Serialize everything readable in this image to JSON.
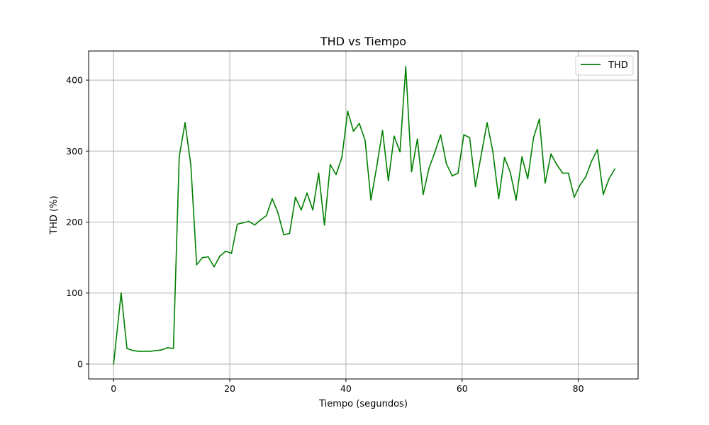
{
  "chart_data": {
    "type": "line",
    "title": "THD vs Tiempo",
    "xlabel": "Tiempo (segundos)",
    "ylabel": "THD (%)",
    "xlim": [
      -4.3,
      90.3
    ],
    "ylim": [
      -21,
      441
    ],
    "xticks": [
      0,
      20,
      40,
      60,
      80
    ],
    "yticks": [
      0,
      100,
      200,
      300,
      400
    ],
    "grid": true,
    "legend_position": "top-right",
    "series": [
      {
        "name": "THD",
        "color": "#008000",
        "x": [
          0,
          1.3,
          2.3,
          3.3,
          4.3,
          6.3,
          8.3,
          9.3,
          10.3,
          11.3,
          12.3,
          13.3,
          14.3,
          15.3,
          16.3,
          17.3,
          18.3,
          19.3,
          20.3,
          21.3,
          22.3,
          23.3,
          24.3,
          25.3,
          26.3,
          27.3,
          28.3,
          29.3,
          30.3,
          31.3,
          32.3,
          33.3,
          34.3,
          35.3,
          36.3,
          37.3,
          38.3,
          39.3,
          40.3,
          41.3,
          42.3,
          43.3,
          44.3,
          45.3,
          46.3,
          47.3,
          48.3,
          49.3,
          50.3,
          51.3,
          52.3,
          53.3,
          54.3,
          55.3,
          56.3,
          57.3,
          58.3,
          59.3,
          60.3,
          61.3,
          62.3,
          63.3,
          64.3,
          65.3,
          66.3,
          67.3,
          68.3,
          69.3,
          70.3,
          71.3,
          72.3,
          73.3,
          74.3,
          75.3,
          76.3,
          77.3,
          78.3,
          79.3,
          80.3,
          81.3,
          82.3,
          83.3,
          84.3,
          85.3,
          86.3
        ],
        "y": [
          0,
          100,
          22,
          19,
          18,
          18,
          20,
          23,
          22,
          292,
          340,
          280,
          140,
          150,
          151,
          137,
          152,
          159,
          156,
          197,
          199,
          201,
          196,
          203,
          209,
          233,
          213,
          182,
          184,
          235,
          217,
          241,
          217,
          269,
          196,
          281,
          267,
          291,
          356,
          328,
          339,
          315,
          231,
          278,
          329,
          258,
          321,
          299,
          419,
          271,
          317,
          239,
          276,
          298,
          323,
          282,
          265,
          269,
          323,
          319,
          250,
          295,
          340,
          299,
          233,
          291,
          270,
          231,
          292,
          261,
          319,
          345,
          255,
          296,
          281,
          269,
          269,
          235,
          252,
          264,
          286,
          302,
          239,
          261,
          275
        ]
      }
    ]
  }
}
